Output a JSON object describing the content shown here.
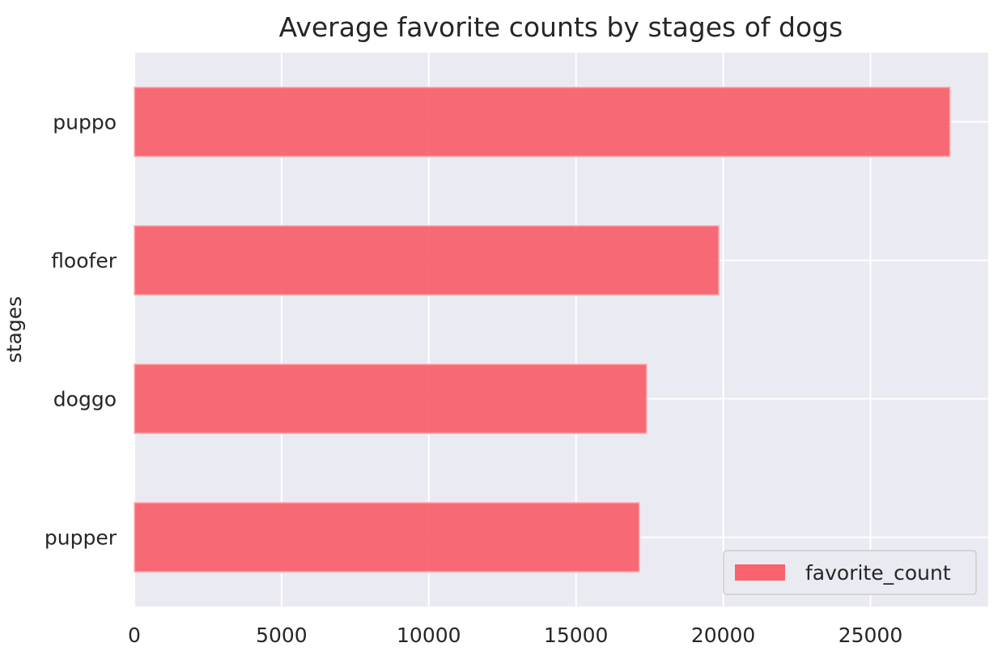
{
  "chart_data": {
    "type": "bar",
    "orientation": "horizontal",
    "title": "Average favorite counts by stages of dogs",
    "xlabel": "",
    "ylabel": "stages",
    "categories": [
      "puppo",
      "floofer",
      "doggo",
      "pupper"
    ],
    "series": [
      {
        "name": "favorite_count",
        "values": [
          27700,
          19850,
          17400,
          17150
        ]
      }
    ],
    "xlim": [
      0,
      29000
    ],
    "xticks": [
      0,
      5000,
      10000,
      15000,
      20000,
      25000
    ],
    "xtick_labels": [
      "0",
      "5000",
      "10000",
      "15000",
      "20000",
      "25000"
    ],
    "grid": true,
    "legend_position": "lower-right",
    "colors": {
      "bar": "#F8636E",
      "background": "#EAEAF2",
      "grid": "#FFFFFF",
      "text": "#262626"
    }
  }
}
